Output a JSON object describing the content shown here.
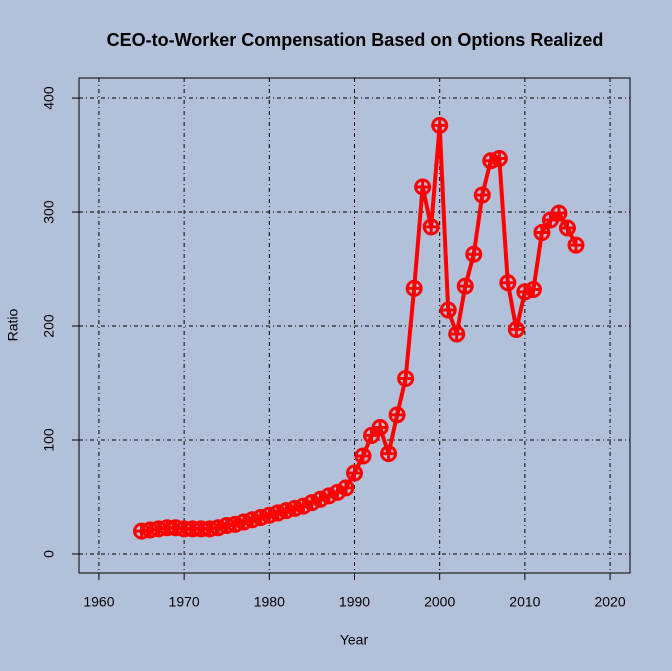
{
  "chart_data": {
    "type": "line",
    "title": "CEO-to-Worker Compensation Based on Options Realized",
    "x_label": "Year",
    "y_label": "Ratio",
    "x": [
      1965,
      1966,
      1967,
      1968,
      1969,
      1970,
      1971,
      1972,
      1973,
      1974,
      1975,
      1976,
      1977,
      1978,
      1979,
      1980,
      1981,
      1982,
      1983,
      1984,
      1985,
      1986,
      1987,
      1988,
      1989,
      1990,
      1991,
      1992,
      1993,
      1994,
      1995,
      1996,
      1997,
      1998,
      1999,
      2000,
      2001,
      2002,
      2003,
      2004,
      2005,
      2006,
      2007,
      2008,
      2009,
      2010,
      2011,
      2012,
      2013,
      2014,
      2015,
      2016
    ],
    "series": [
      {
        "name": "Ratio",
        "color": "#ff0000",
        "values": [
          20,
          21,
          22,
          23,
          23,
          22,
          22,
          22,
          22,
          23,
          25,
          26,
          28,
          30,
          32,
          34,
          36,
          38,
          40,
          42,
          45,
          48,
          51,
          54,
          58,
          71,
          86,
          104,
          111,
          88,
          122,
          154,
          233,
          322,
          287,
          376,
          214,
          193,
          235,
          263,
          315,
          345,
          347,
          238,
          197,
          230,
          232,
          282,
          293,
          299,
          286,
          271
        ]
      }
    ],
    "xlim": [
      1957.66,
      2022.34
    ],
    "ylim": [
      -16.7,
      417.6
    ],
    "xticks": [
      1960,
      1970,
      1980,
      1990,
      2000,
      2010,
      2020
    ],
    "yticks": [
      0,
      100,
      200,
      300,
      400
    ],
    "grid": true,
    "background": "#b3c0d9"
  }
}
